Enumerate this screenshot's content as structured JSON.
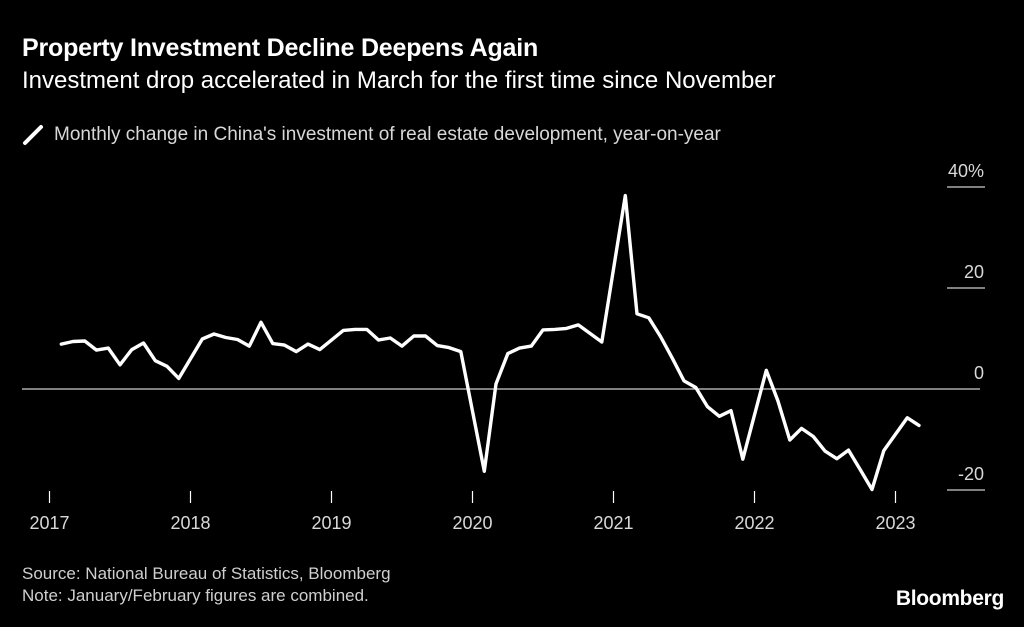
{
  "header": {
    "title": "Property Investment Decline Deepens Again",
    "subtitle": "Investment drop accelerated in March for the first time since November"
  },
  "legend": {
    "label": "Monthly change in China's investment of real estate development, year-on-year",
    "icon": "line-swatch-icon"
  },
  "footer": {
    "source": "Source: National Bureau of Statistics, Bloomberg",
    "note": "Note: January/February figures are combined."
  },
  "brand": "Bloomberg",
  "colors": {
    "background": "#000000",
    "line": "#ffffff",
    "axis": "#ffffff",
    "text": "#d8d8d8"
  },
  "chart_data": {
    "type": "line",
    "title": "Property Investment Decline Deepens Again",
    "subtitle": "Investment drop accelerated in March for the first time since November",
    "ylabel": "",
    "xlabel": "",
    "ylim": [
      -20,
      40
    ],
    "y_ticks": [
      40,
      20,
      0,
      -20
    ],
    "y_tick_labels": [
      "40%",
      "20",
      "0",
      "-20"
    ],
    "x_ticks": [
      "2017",
      "2018",
      "2019",
      "2020",
      "2021",
      "2022",
      "2023"
    ],
    "grid": false,
    "legend_position": "top-left",
    "series": [
      {
        "name": "Monthly change in China's investment of real estate development, year-on-year",
        "x": [
          "2017-02",
          "2017-03",
          "2017-04",
          "2017-05",
          "2017-06",
          "2017-07",
          "2017-08",
          "2017-09",
          "2017-10",
          "2017-11",
          "2017-12",
          "2018-02",
          "2018-03",
          "2018-04",
          "2018-05",
          "2018-06",
          "2018-07",
          "2018-08",
          "2018-09",
          "2018-10",
          "2018-11",
          "2018-12",
          "2019-02",
          "2019-03",
          "2019-04",
          "2019-05",
          "2019-06",
          "2019-07",
          "2019-08",
          "2019-09",
          "2019-10",
          "2019-11",
          "2019-12",
          "2020-02",
          "2020-03",
          "2020-04",
          "2020-05",
          "2020-06",
          "2020-07",
          "2020-08",
          "2020-09",
          "2020-10",
          "2020-11",
          "2020-12",
          "2021-02",
          "2021-03",
          "2021-04",
          "2021-05",
          "2021-06",
          "2021-07",
          "2021-08",
          "2021-09",
          "2021-10",
          "2021-11",
          "2021-12",
          "2022-02",
          "2022-03",
          "2022-04",
          "2022-05",
          "2022-06",
          "2022-07",
          "2022-08",
          "2022-09",
          "2022-10",
          "2022-11",
          "2022-12",
          "2023-02",
          "2023-03"
        ],
        "values": [
          8.9,
          9.4,
          9.5,
          7.7,
          8.1,
          4.8,
          7.8,
          9.1,
          5.6,
          4.5,
          2.1,
          9.9,
          10.9,
          10.2,
          9.8,
          8.5,
          13.2,
          9.0,
          8.7,
          7.4,
          8.9,
          7.8,
          11.6,
          11.8,
          11.8,
          9.7,
          10.1,
          8.5,
          10.5,
          10.5,
          8.6,
          8.2,
          7.4,
          -16.3,
          1.0,
          7.0,
          8.1,
          8.5,
          11.7,
          11.8,
          12.0,
          12.7,
          11.0,
          9.3,
          38.3,
          14.9,
          14.1,
          10.4,
          6.1,
          1.6,
          0.3,
          -3.5,
          -5.4,
          -4.3,
          -13.9,
          3.7,
          -2.4,
          -10.1,
          -7.8,
          -9.4,
          -12.3,
          -13.8,
          -12.1,
          -16.0,
          -19.9,
          -12.2,
          -5.7,
          -7.2
        ]
      }
    ]
  }
}
